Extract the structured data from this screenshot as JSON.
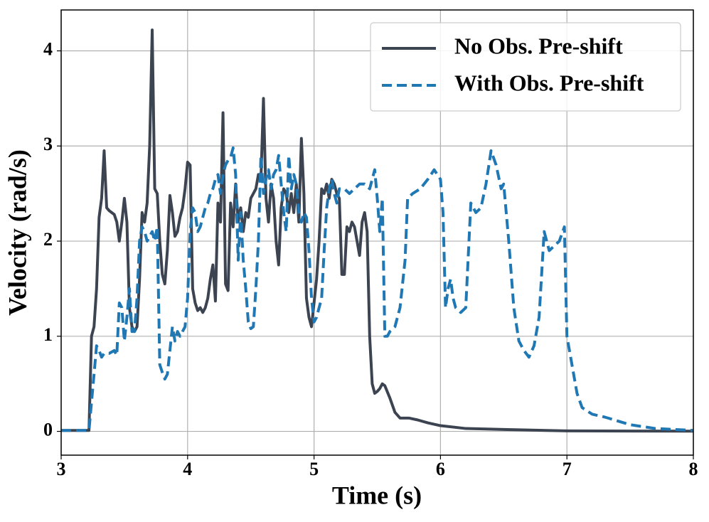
{
  "chart_data": {
    "type": "line",
    "xlabel": "Time (s)",
    "ylabel": "Velocity (rad/s)",
    "xlim": [
      3,
      8
    ],
    "ylim": [
      -0.25,
      4.43
    ],
    "xticks": [
      3,
      4,
      5,
      6,
      7,
      8
    ],
    "yticks": [
      0,
      1,
      2,
      3,
      4
    ],
    "grid": true,
    "legend": "upper right",
    "series": [
      {
        "name": "No Obs. Pre-shift",
        "color": "#3d4451",
        "dash": "solid",
        "x": [
          3,
          3.22,
          3.24,
          3.26,
          3.28,
          3.3,
          3.32,
          3.34,
          3.36,
          3.38,
          3.42,
          3.44,
          3.46,
          3.48,
          3.5,
          3.52,
          3.54,
          3.56,
          3.58,
          3.6,
          3.62,
          3.64,
          3.66,
          3.68,
          3.7,
          3.72,
          3.74,
          3.76,
          3.78,
          3.8,
          3.82,
          3.84,
          3.86,
          3.88,
          3.9,
          3.92,
          3.94,
          3.96,
          3.98,
          4.0,
          4.02,
          4.04,
          4.06,
          4.08,
          4.1,
          4.12,
          4.14,
          4.16,
          4.18,
          4.2,
          4.22,
          4.24,
          4.26,
          4.28,
          4.3,
          4.32,
          4.34,
          4.36,
          4.38,
          4.4,
          4.42,
          4.44,
          4.46,
          4.48,
          4.5,
          4.52,
          4.54,
          4.56,
          4.58,
          4.6,
          4.62,
          4.64,
          4.66,
          4.68,
          4.7,
          4.72,
          4.74,
          4.76,
          4.78,
          4.8,
          4.82,
          4.84,
          4.86,
          4.88,
          4.9,
          4.92,
          4.94,
          4.96,
          4.98,
          5.0,
          5.02,
          5.04,
          5.06,
          5.08,
          5.1,
          5.12,
          5.14,
          5.16,
          5.18,
          5.2,
          5.22,
          5.24,
          5.26,
          5.28,
          5.3,
          5.32,
          5.34,
          5.36,
          5.38,
          5.4,
          5.42,
          5.44,
          5.46,
          5.48,
          5.5,
          5.52,
          5.54,
          5.56,
          5.6,
          5.64,
          5.68,
          5.75,
          5.82,
          5.9,
          6.0,
          6.2,
          6.5,
          7.0,
          8.0
        ],
        "values": [
          0.01,
          0.01,
          1.0,
          1.1,
          1.5,
          2.25,
          2.45,
          2.95,
          2.35,
          2.32,
          2.28,
          2.2,
          2.0,
          2.2,
          2.45,
          2.2,
          1.3,
          1.1,
          1.05,
          1.1,
          1.6,
          2.3,
          2.2,
          2.4,
          3.0,
          4.22,
          2.55,
          2.5,
          2.0,
          1.65,
          1.55,
          1.9,
          2.48,
          2.3,
          2.05,
          2.1,
          2.25,
          2.35,
          2.55,
          2.83,
          2.8,
          1.5,
          1.35,
          1.27,
          1.3,
          1.25,
          1.3,
          1.4,
          1.6,
          1.75,
          1.37,
          2.4,
          2.2,
          3.35,
          1.55,
          1.48,
          2.4,
          2.15,
          2.6,
          2.2,
          2.35,
          2.1,
          2.3,
          2.25,
          2.45,
          2.5,
          2.55,
          2.7,
          2.65,
          3.5,
          2.45,
          2.2,
          2.6,
          2.45,
          2.0,
          1.75,
          2.35,
          2.55,
          2.5,
          2.3,
          2.5,
          2.3,
          2.6,
          2.2,
          3.08,
          2.5,
          1.4,
          1.2,
          1.1,
          1.35,
          1.6,
          2.0,
          2.55,
          2.5,
          2.6,
          2.45,
          2.65,
          2.6,
          2.5,
          2.45,
          1.65,
          1.65,
          2.15,
          2.1,
          2.2,
          2.15,
          2.0,
          1.85,
          2.2,
          2.3,
          2.1,
          1.0,
          0.5,
          0.4,
          0.42,
          0.45,
          0.5,
          0.48,
          0.35,
          0.2,
          0.14,
          0.14,
          0.12,
          0.09,
          0.06,
          0.03,
          0.02,
          0.005,
          0.002
        ]
      },
      {
        "name": "With Obs. Pre-shift",
        "color": "#1f77b4",
        "dash": "dashed",
        "x": [
          3,
          3.22,
          3.26,
          3.28,
          3.3,
          3.32,
          3.34,
          3.38,
          3.42,
          3.44,
          3.46,
          3.48,
          3.5,
          3.52,
          3.54,
          3.56,
          3.58,
          3.6,
          3.62,
          3.64,
          3.66,
          3.68,
          3.7,
          3.72,
          3.74,
          3.76,
          3.78,
          3.8,
          3.82,
          3.84,
          3.86,
          3.88,
          3.9,
          3.92,
          3.94,
          3.96,
          3.98,
          4.0,
          4.02,
          4.04,
          4.06,
          4.08,
          4.1,
          4.12,
          4.14,
          4.16,
          4.18,
          4.2,
          4.22,
          4.24,
          4.26,
          4.28,
          4.3,
          4.32,
          4.34,
          4.36,
          4.38,
          4.4,
          4.42,
          4.44,
          4.46,
          4.48,
          4.5,
          4.52,
          4.54,
          4.56,
          4.58,
          4.6,
          4.62,
          4.64,
          4.66,
          4.68,
          4.7,
          4.72,
          4.74,
          4.76,
          4.78,
          4.8,
          4.82,
          4.84,
          4.86,
          4.88,
          4.9,
          4.92,
          4.94,
          4.96,
          4.98,
          5.0,
          5.02,
          5.04,
          5.06,
          5.08,
          5.1,
          5.12,
          5.14,
          5.16,
          5.18,
          5.2,
          5.24,
          5.28,
          5.32,
          5.36,
          5.4,
          5.44,
          5.48,
          5.5,
          5.52,
          5.54,
          5.56,
          5.58,
          5.6,
          5.64,
          5.68,
          5.72,
          5.74,
          5.78,
          5.84,
          5.9,
          5.95,
          6.0,
          6.02,
          6.04,
          6.06,
          6.08,
          6.1,
          6.12,
          6.16,
          6.2,
          6.24,
          6.28,
          6.32,
          6.36,
          6.4,
          6.44,
          6.48,
          6.5,
          6.54,
          6.58,
          6.62,
          6.66,
          6.7,
          6.74,
          6.78,
          6.82,
          6.86,
          6.9,
          6.94,
          6.98,
          7.0,
          7.04,
          7.08,
          7.12,
          7.2,
          7.3,
          7.5,
          7.7,
          8.0
        ],
        "values": [
          0.01,
          0.01,
          0.6,
          0.9,
          0.85,
          0.78,
          0.82,
          0.82,
          0.85,
          0.8,
          1.35,
          1.3,
          0.95,
          1.2,
          1.5,
          1.05,
          1.05,
          1.4,
          2.0,
          2.15,
          2.1,
          2.0,
          2.05,
          2.1,
          2.0,
          2.15,
          0.7,
          0.62,
          0.55,
          0.6,
          0.85,
          1.1,
          0.95,
          1.05,
          1.0,
          1.05,
          1.1,
          1.4,
          2.1,
          2.35,
          2.3,
          2.1,
          2.15,
          2.25,
          2.35,
          2.4,
          2.5,
          2.55,
          2.65,
          2.7,
          2.5,
          2.7,
          2.8,
          2.85,
          2.88,
          2.98,
          2.7,
          1.8,
          2.3,
          1.8,
          1.5,
          1.15,
          1.08,
          1.1,
          1.5,
          2.0,
          2.9,
          2.5,
          2.65,
          2.75,
          2.55,
          2.7,
          2.75,
          2.9,
          2.6,
          2.3,
          2.1,
          2.9,
          2.55,
          2.7,
          2.6,
          2.3,
          2.2,
          2.3,
          2.25,
          1.9,
          1.4,
          1.15,
          1.2,
          1.3,
          1.4,
          1.9,
          2.35,
          2.55,
          2.65,
          2.5,
          2.4,
          2.55,
          2.55,
          2.5,
          2.55,
          2.6,
          2.6,
          2.55,
          2.75,
          2.45,
          2.1,
          2.45,
          1.0,
          1.0,
          1.05,
          1.1,
          1.3,
          1.8,
          2.45,
          2.5,
          2.55,
          2.65,
          2.75,
          2.65,
          2.3,
          1.3,
          1.5,
          1.6,
          1.4,
          1.3,
          1.25,
          1.3,
          2.4,
          2.3,
          2.35,
          2.6,
          2.95,
          2.8,
          2.55,
          2.6,
          2.0,
          1.3,
          0.95,
          0.85,
          0.78,
          0.9,
          1.2,
          2.1,
          1.9,
          1.95,
          2.0,
          2.15,
          1.0,
          0.7,
          0.4,
          0.25,
          0.18,
          0.15,
          0.07,
          0.03,
          0.01
        ]
      }
    ]
  }
}
